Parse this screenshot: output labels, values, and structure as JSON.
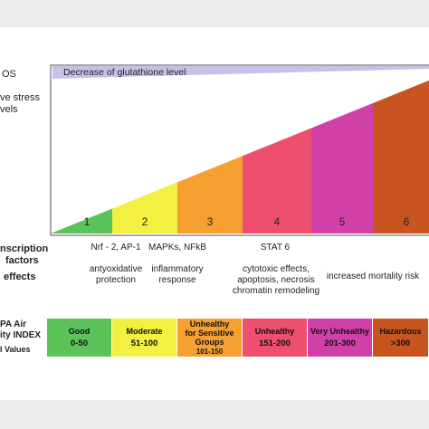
{
  "left_labels": {
    "ros": "OS",
    "stress1": "ve stress",
    "stress2": "vels",
    "transcription1": "nscription",
    "transcription2": "factors",
    "effects": "effects",
    "epa1": "PA Air",
    "epa2": "ity INDEX",
    "values": "I Values"
  },
  "glutathione_bar": "Decrease of glutathione level",
  "stages": [
    {
      "num": "1",
      "color": "#5cc25a"
    },
    {
      "num": "2",
      "color": "#f2f040"
    },
    {
      "num": "3",
      "color": "#f5a030"
    },
    {
      "num": "4",
      "color": "#ee4f6e"
    },
    {
      "num": "5",
      "color": "#d040a8"
    },
    {
      "num": "6",
      "color": "#c85420"
    }
  ],
  "transcription": {
    "col1": "Nrf - 2, AP-1",
    "col2": "MAPKs, NFkB",
    "col3": "STAT 6"
  },
  "effects": {
    "col1": [
      "antyoxidative",
      "protection"
    ],
    "col2": [
      "inflammatory",
      "response"
    ],
    "col3": [
      "cytotoxic effects,",
      "apoptosis, necrosis",
      "chromatin remodeling"
    ],
    "col4": "increased mortality risk"
  },
  "aqi": [
    {
      "category": [
        "Good"
      ],
      "range": "0-50",
      "color": "#5cc25a"
    },
    {
      "category": [
        "Moderate"
      ],
      "range": "51-100",
      "color": "#f2f040"
    },
    {
      "category": [
        "Unhealthy",
        "for Sensitive",
        "Groups"
      ],
      "range": "101-150",
      "color": "#f5a030"
    },
    {
      "category": [
        "Unhealthy"
      ],
      "range": "151-200",
      "color": "#ee4f6e"
    },
    {
      "category": [
        "Very Unhealthy"
      ],
      "range": "201-300",
      "color": "#d040a8"
    },
    {
      "category": [
        "Hazardous"
      ],
      "range": ">300",
      "color": "#c85420"
    }
  ]
}
